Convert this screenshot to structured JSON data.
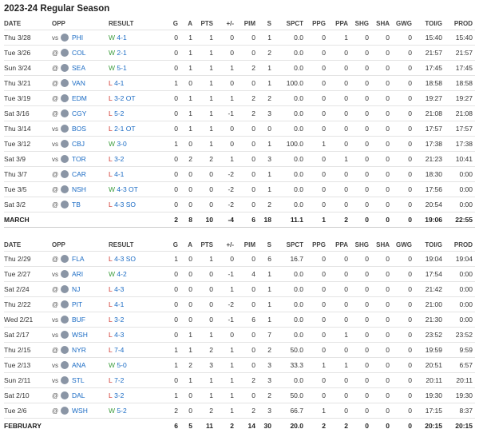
{
  "title": "2023-24 Regular Season",
  "sections": [
    {
      "headers": [
        "DATE",
        "OPP",
        "RESULT",
        "G",
        "A",
        "PTS",
        "+/-",
        "PIM",
        "S",
        "SPCT",
        "PPG",
        "PPA",
        "SHG",
        "SHA",
        "GWG",
        "TOI/G",
        "PROD"
      ],
      "rows": [
        {
          "date": "Thu 3/28",
          "ha": "vs",
          "opp": "PHI",
          "wl": "W",
          "score": "4-1",
          "stats": [
            "0",
            "1",
            "1",
            "0",
            "0",
            "1",
            "0.0",
            "0",
            "1",
            "0",
            "0",
            "0",
            "15:40",
            "15:40"
          ]
        },
        {
          "date": "Tue 3/26",
          "ha": "@",
          "opp": "COL",
          "wl": "W",
          "score": "2-1",
          "stats": [
            "0",
            "1",
            "1",
            "0",
            "0",
            "2",
            "0.0",
            "0",
            "0",
            "0",
            "0",
            "0",
            "21:57",
            "21:57"
          ]
        },
        {
          "date": "Sun 3/24",
          "ha": "@",
          "opp": "SEA",
          "wl": "W",
          "score": "5-1",
          "stats": [
            "0",
            "1",
            "1",
            "1",
            "2",
            "1",
            "0.0",
            "0",
            "0",
            "0",
            "0",
            "0",
            "17:45",
            "17:45"
          ]
        },
        {
          "date": "Thu 3/21",
          "ha": "@",
          "opp": "VAN",
          "wl": "L",
          "score": "4-1",
          "stats": [
            "1",
            "0",
            "1",
            "0",
            "0",
            "1",
            "100.0",
            "0",
            "0",
            "0",
            "0",
            "0",
            "18:58",
            "18:58"
          ]
        },
        {
          "date": "Tue 3/19",
          "ha": "@",
          "opp": "EDM",
          "wl": "L",
          "score": "3-2 OT",
          "stats": [
            "0",
            "1",
            "1",
            "1",
            "2",
            "2",
            "0.0",
            "0",
            "0",
            "0",
            "0",
            "0",
            "19:27",
            "19:27"
          ]
        },
        {
          "date": "Sat 3/16",
          "ha": "@",
          "opp": "CGY",
          "wl": "L",
          "score": "5-2",
          "stats": [
            "0",
            "1",
            "1",
            "-1",
            "2",
            "3",
            "0.0",
            "0",
            "0",
            "0",
            "0",
            "0",
            "21:08",
            "21:08"
          ]
        },
        {
          "date": "Thu 3/14",
          "ha": "vs",
          "opp": "BOS",
          "wl": "L",
          "score": "2-1 OT",
          "stats": [
            "0",
            "1",
            "1",
            "0",
            "0",
            "0",
            "0.0",
            "0",
            "0",
            "0",
            "0",
            "0",
            "17:57",
            "17:57"
          ]
        },
        {
          "date": "Tue 3/12",
          "ha": "vs",
          "opp": "CBJ",
          "wl": "W",
          "score": "3-0",
          "stats": [
            "1",
            "0",
            "1",
            "0",
            "0",
            "1",
            "100.0",
            "1",
            "0",
            "0",
            "0",
            "0",
            "17:38",
            "17:38"
          ]
        },
        {
          "date": "Sat 3/9",
          "ha": "vs",
          "opp": "TOR",
          "wl": "L",
          "score": "3-2",
          "stats": [
            "0",
            "2",
            "2",
            "1",
            "0",
            "3",
            "0.0",
            "0",
            "1",
            "0",
            "0",
            "0",
            "21:23",
            "10:41"
          ]
        },
        {
          "date": "Thu 3/7",
          "ha": "@",
          "opp": "CAR",
          "wl": "L",
          "score": "4-1",
          "stats": [
            "0",
            "0",
            "0",
            "-2",
            "0",
            "1",
            "0.0",
            "0",
            "0",
            "0",
            "0",
            "0",
            "18:30",
            "0:00"
          ]
        },
        {
          "date": "Tue 3/5",
          "ha": "@",
          "opp": "NSH",
          "wl": "W",
          "score": "4-3 OT",
          "stats": [
            "0",
            "0",
            "0",
            "-2",
            "0",
            "1",
            "0.0",
            "0",
            "0",
            "0",
            "0",
            "0",
            "17:56",
            "0:00"
          ]
        },
        {
          "date": "Sat 3/2",
          "ha": "@",
          "opp": "TB",
          "wl": "L",
          "score": "4-3 SO",
          "stats": [
            "0",
            "0",
            "0",
            "-2",
            "0",
            "2",
            "0.0",
            "0",
            "0",
            "0",
            "0",
            "0",
            "20:54",
            "0:00"
          ]
        }
      ],
      "total": {
        "label": "MARCH",
        "stats": [
          "2",
          "8",
          "10",
          "-4",
          "6",
          "18",
          "11.1",
          "1",
          "2",
          "0",
          "0",
          "0",
          "19:06",
          "22:55"
        ]
      }
    },
    {
      "headers": [
        "DATE",
        "OPP",
        "RESULT",
        "G",
        "A",
        "PTS",
        "+/-",
        "PIM",
        "S",
        "SPCT",
        "PPG",
        "PPA",
        "SHG",
        "SHA",
        "GWG",
        "TOI/G",
        "PROD"
      ],
      "rows": [
        {
          "date": "Thu 2/29",
          "ha": "@",
          "opp": "FLA",
          "wl": "L",
          "score": "4-3 SO",
          "stats": [
            "1",
            "0",
            "1",
            "0",
            "0",
            "6",
            "16.7",
            "0",
            "0",
            "0",
            "0",
            "0",
            "19:04",
            "19:04"
          ]
        },
        {
          "date": "Tue 2/27",
          "ha": "vs",
          "opp": "ARI",
          "wl": "W",
          "score": "4-2",
          "stats": [
            "0",
            "0",
            "0",
            "-1",
            "4",
            "1",
            "0.0",
            "0",
            "0",
            "0",
            "0",
            "0",
            "17:54",
            "0:00"
          ]
        },
        {
          "date": "Sat 2/24",
          "ha": "@",
          "opp": "NJ",
          "wl": "L",
          "score": "4-3",
          "stats": [
            "0",
            "0",
            "0",
            "1",
            "0",
            "1",
            "0.0",
            "0",
            "0",
            "0",
            "0",
            "0",
            "21:42",
            "0:00"
          ]
        },
        {
          "date": "Thu 2/22",
          "ha": "@",
          "opp": "PIT",
          "wl": "L",
          "score": "4-1",
          "stats": [
            "0",
            "0",
            "0",
            "-2",
            "0",
            "1",
            "0.0",
            "0",
            "0",
            "0",
            "0",
            "0",
            "21:00",
            "0:00"
          ]
        },
        {
          "date": "Wed 2/21",
          "ha": "vs",
          "opp": "BUF",
          "wl": "L",
          "score": "3-2",
          "stats": [
            "0",
            "0",
            "0",
            "-1",
            "6",
            "1",
            "0.0",
            "0",
            "0",
            "0",
            "0",
            "0",
            "21:30",
            "0:00"
          ]
        },
        {
          "date": "Sat 2/17",
          "ha": "vs",
          "opp": "WSH",
          "wl": "L",
          "score": "4-3",
          "stats": [
            "0",
            "1",
            "1",
            "0",
            "0",
            "7",
            "0.0",
            "0",
            "1",
            "0",
            "0",
            "0",
            "23:52",
            "23:52"
          ]
        },
        {
          "date": "Thu 2/15",
          "ha": "@",
          "opp": "NYR",
          "wl": "L",
          "score": "7-4",
          "stats": [
            "1",
            "1",
            "2",
            "1",
            "0",
            "2",
            "50.0",
            "0",
            "0",
            "0",
            "0",
            "0",
            "19:59",
            "9:59"
          ]
        },
        {
          "date": "Tue 2/13",
          "ha": "vs",
          "opp": "ANA",
          "wl": "W",
          "score": "5-0",
          "stats": [
            "1",
            "2",
            "3",
            "1",
            "0",
            "3",
            "33.3",
            "1",
            "1",
            "0",
            "0",
            "0",
            "20:51",
            "6:57"
          ]
        },
        {
          "date": "Sun 2/11",
          "ha": "vs",
          "opp": "STL",
          "wl": "L",
          "score": "7-2",
          "stats": [
            "0",
            "1",
            "1",
            "1",
            "2",
            "3",
            "0.0",
            "0",
            "0",
            "0",
            "0",
            "0",
            "20:11",
            "20:11"
          ]
        },
        {
          "date": "Sat 2/10",
          "ha": "@",
          "opp": "DAL",
          "wl": "L",
          "score": "3-2",
          "stats": [
            "1",
            "0",
            "1",
            "1",
            "0",
            "2",
            "50.0",
            "0",
            "0",
            "0",
            "0",
            "0",
            "19:30",
            "19:30"
          ]
        },
        {
          "date": "Tue 2/6",
          "ha": "@",
          "opp": "WSH",
          "wl": "W",
          "score": "5-2",
          "stats": [
            "2",
            "0",
            "2",
            "1",
            "2",
            "3",
            "66.7",
            "1",
            "0",
            "0",
            "0",
            "0",
            "17:15",
            "8:37"
          ]
        }
      ],
      "total": {
        "label": "FEBRUARY",
        "stats": [
          "6",
          "5",
          "11",
          "2",
          "14",
          "30",
          "20.0",
          "2",
          "2",
          "0",
          "0",
          "0",
          "20:15",
          "20:15"
        ]
      }
    }
  ]
}
